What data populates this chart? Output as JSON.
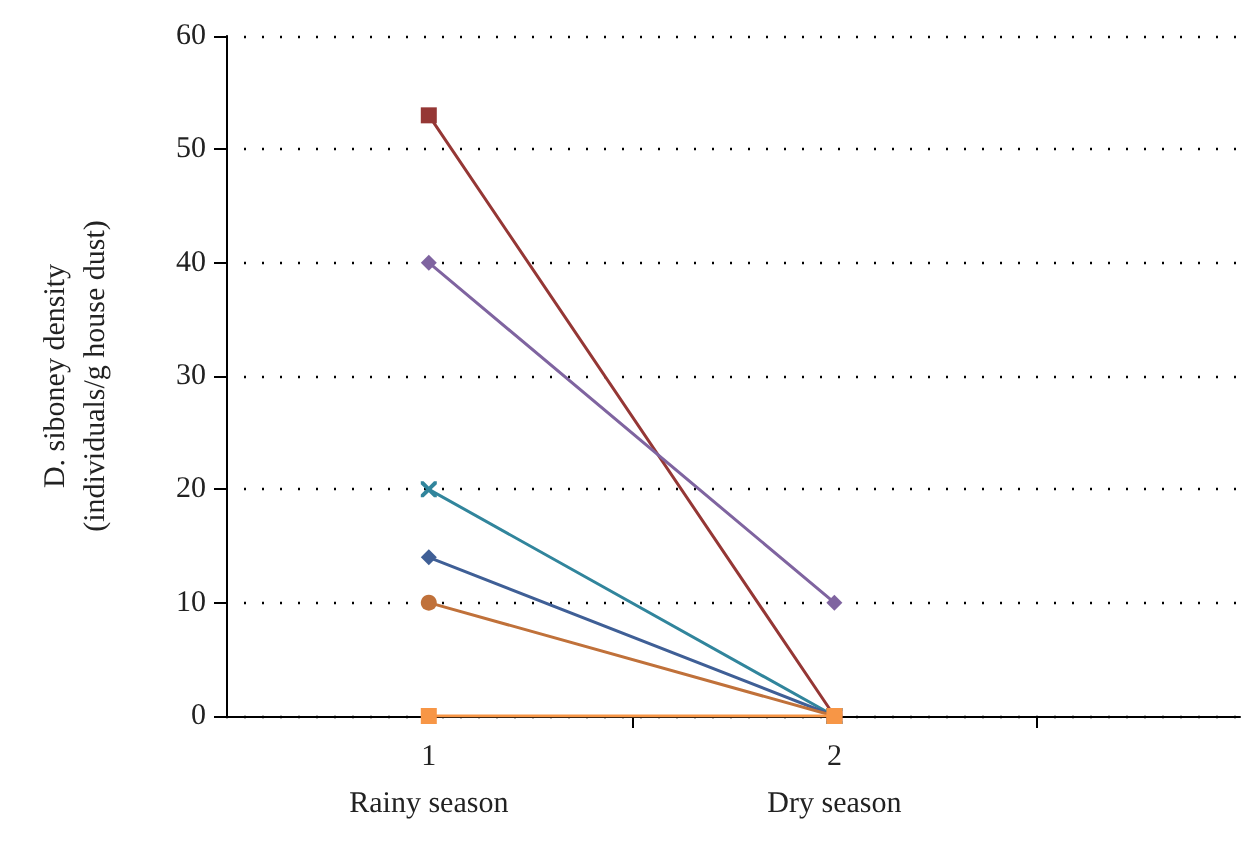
{
  "chart_data": {
    "type": "line",
    "ylabel": "D. siboney density\n(individuals/g house dust)",
    "x": [
      1,
      2
    ],
    "xlim": [
      0.5,
      3
    ],
    "xticks": [
      {
        "value": 1,
        "label": "1"
      },
      {
        "value": 1.5,
        "label": null
      },
      {
        "value": 2,
        "label": "2"
      },
      {
        "value": 2.5,
        "label": null
      }
    ],
    "ylim": [
      0,
      60
    ],
    "yticks": [
      0,
      10,
      20,
      30,
      40,
      50,
      60
    ],
    "grid": "y",
    "series": [
      {
        "color": "#953735",
        "marker": "square",
        "values": [
          53,
          0
        ]
      },
      {
        "color": "#7f64a0",
        "marker": "diamond",
        "values": [
          40,
          10
        ]
      },
      {
        "color": "#31859c",
        "marker": "cross",
        "values": [
          20,
          0
        ]
      },
      {
        "color": "#3f5f96",
        "marker": "diamond",
        "values": [
          14,
          0
        ]
      },
      {
        "color": "#c0713a",
        "marker": "circle",
        "values": [
          10,
          0
        ]
      },
      {
        "color": "#f79646",
        "marker": "square",
        "values": [
          0,
          0
        ]
      }
    ],
    "annotations": [
      "Rainy season",
      "Dry season"
    ]
  }
}
